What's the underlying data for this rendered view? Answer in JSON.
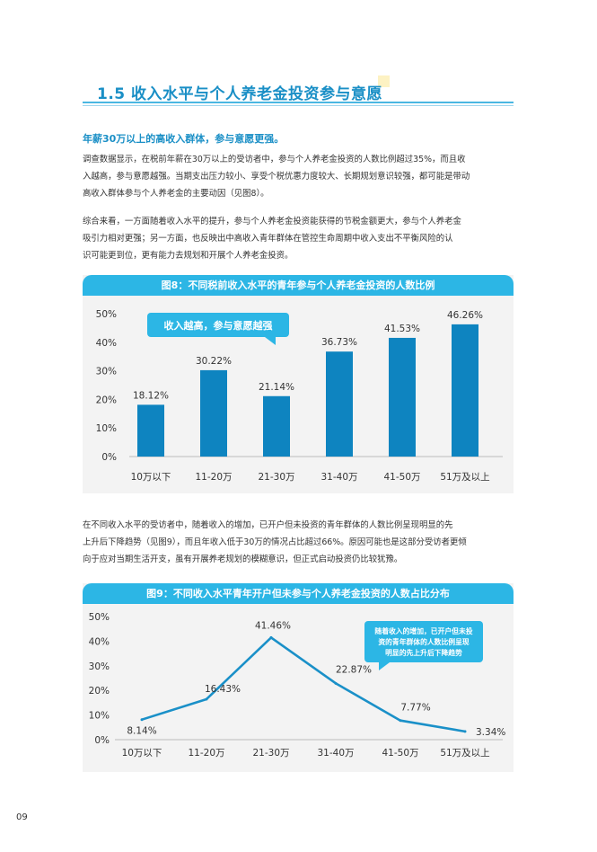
{
  "section": {
    "title": "1.5 收入水平与个人养老金投资参与意愿"
  },
  "subhead": "年薪30万以上的高收入群体，参与意愿更强。",
  "paragraphs": [
    [
      "调查数据显示，在税前年薪在30万以上的受访者中，参与个人养老金投资的人数比例超过35%，而且收",
      "入越高，参与意愿越强。当期支出压力较小、享受个税优惠力度较大、长期规划意识较强，都可能是带动",
      "高收入群体参与个人养老金的主要动因（见图8）。"
    ],
    [
      "综合来看，一方面随着收入水平的提升，参与个人养老金投资能获得的节税金额更大，参与个人养老金",
      "吸引力相对更强；另一方面，也反映出中高收入青年群体在管控生命周期中收入支出不平衡风险的认",
      "识可能更到位，更有能力去规划和开展个人养老金投资。"
    ],
    [
      "在不同收入水平的受访者中，随着收入的增加，已开户但未投资的青年群体的人数比例呈现明显的先",
      "上升后下降趋势（见图9），而且年收入低于30万的情况占比超过66%。原因可能也是这部分受访者更倾",
      "向于应对当期生活开支，虽有开展养老规划的模糊意识，但正式启动投资仍比较犹豫。"
    ]
  ],
  "chart_data": [
    {
      "type": "bar",
      "title": "图8：不同税前收入水平的青年参与个人养老金投资的人数比例",
      "categories": [
        "10万以下",
        "11-20万",
        "21-30万",
        "31-40万",
        "41-50万",
        "51万及以上"
      ],
      "values": [
        18.12,
        30.22,
        21.14,
        36.73,
        41.53,
        46.26
      ],
      "value_labels": [
        "18.12%",
        "30.22%",
        "21.14%",
        "36.73%",
        "41.53%",
        "46.26%"
      ],
      "ylim": [
        0,
        50
      ],
      "yticks": [
        "0%",
        "10%",
        "20%",
        "30%",
        "40%",
        "50%"
      ],
      "annotation": "收入越高，参与意愿越强",
      "bar_color": "#0e84c0",
      "grid": false
    },
    {
      "type": "line",
      "title": "图9：不同收入水平青年开户但未参与个人养老金投资的人数占比分布",
      "categories": [
        "10万以下",
        "11-20万",
        "21-30万",
        "31-40万",
        "41-50万",
        "51万及以上"
      ],
      "values": [
        8.14,
        16.43,
        41.46,
        22.87,
        7.77,
        3.34
      ],
      "value_labels": [
        "8.14%",
        "16.43%",
        "41.46%",
        "22.87%",
        "7.77%",
        "3.34%"
      ],
      "ylim": [
        0,
        50
      ],
      "yticks": [
        "0%",
        "10%",
        "20%",
        "30%",
        "40%",
        "50%"
      ],
      "annotation": [
        "随着收入的增加，已开户但未投",
        "资的青年群体的人数比例呈现",
        "明显的先上升后下降趋势"
      ],
      "line_color": "#1a90c8",
      "grid": false
    }
  ],
  "page_number": "09",
  "colors": {
    "accent": "#1a8fc6",
    "banner": "#2cb6e5",
    "bar": "#0e84c0",
    "panel": "#f3f3f3"
  }
}
